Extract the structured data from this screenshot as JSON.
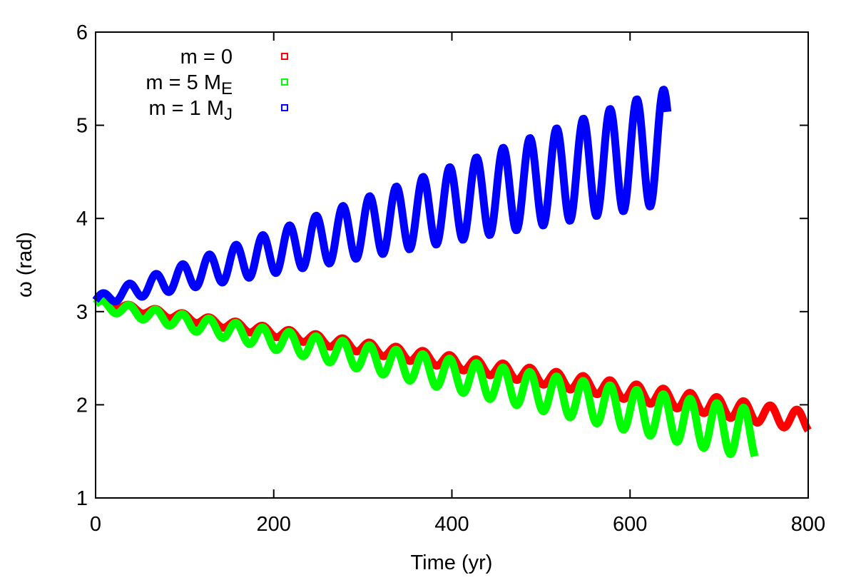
{
  "chart_data": {
    "type": "line",
    "title": "",
    "xlabel": "Time (yr)",
    "ylabel": "ω (rad)",
    "xlim": [
      0,
      800
    ],
    "ylim": [
      1,
      6
    ],
    "grid": false,
    "legend_position": "top-left",
    "xticks": [
      0,
      200,
      400,
      600,
      800
    ],
    "yticks": [
      1,
      2,
      3,
      4,
      5,
      6
    ],
    "xtick_labels": [
      "0",
      "200",
      "400",
      "600",
      "800"
    ],
    "ytick_labels": [
      "1",
      "2",
      "3",
      "4",
      "5",
      "6"
    ],
    "series": [
      {
        "name": "m = 0",
        "legend_main": "m = 0",
        "legend_sub": "",
        "color": "#ff0000",
        "x_start": 0,
        "x_end": 800,
        "period": 30,
        "base_start": 3.1,
        "base_end": 1.82,
        "amp_start": 0.03,
        "amp_end": 0.11
      },
      {
        "name": "m = 5 M_E",
        "legend_main": "m = 5 M",
        "legend_sub": "E",
        "color": "#00ff00",
        "x_start": 0,
        "x_end": 740,
        "period": 30,
        "base_start": 3.08,
        "base_end": 1.68,
        "amp_start": 0.05,
        "amp_end": 0.27
      },
      {
        "name": "m = 1 M_J",
        "legend_main": "m = 1 M",
        "legend_sub": "J",
        "color": "#0000ff",
        "x_start": 0,
        "x_end": 642,
        "period": 30,
        "base_start": 3.12,
        "base_end": 4.78,
        "amp_start": 0.05,
        "amp_end": 0.62
      }
    ]
  }
}
